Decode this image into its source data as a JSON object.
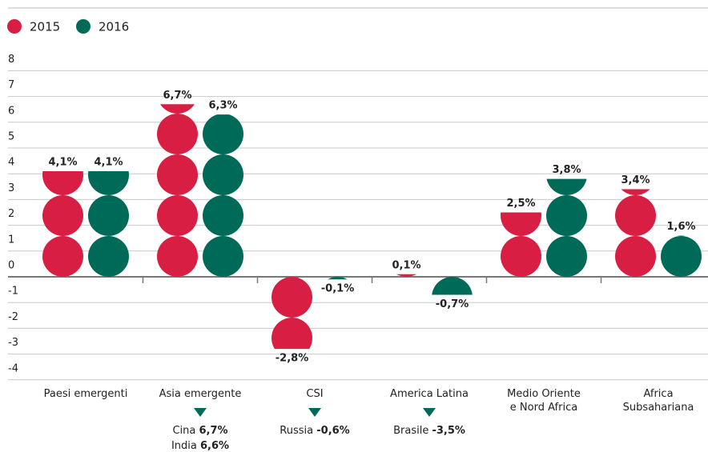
{
  "chart_data": {
    "type": "pictogram-bar",
    "categories": [
      "Paesi emergenti",
      "Asia emergente",
      "CSI",
      "America Latina",
      "Medio Oriente\ne Nord Africa",
      "Africa\nSubsahariana"
    ],
    "series": [
      {
        "name": "2015",
        "color": "#d81e43",
        "values": [
          4.1,
          6.7,
          -2.8,
          0.1,
          2.5,
          3.4
        ],
        "value_labels": [
          "4,1%",
          "6,7%",
          "-2,8%",
          "0,1%",
          "2,5%",
          "3,4%"
        ]
      },
      {
        "name": "2016",
        "color": "#006a58",
        "values": [
          4.1,
          6.3,
          -0.1,
          -0.7,
          3.8,
          1.6
        ],
        "value_labels": [
          "4,1%",
          "6,3%",
          "-0,1%",
          "-0,7%",
          "3,8%",
          "1,6%"
        ]
      }
    ],
    "ylim": [
      -4.5,
      8.5
    ],
    "yticks": [
      8,
      7,
      6,
      5,
      4,
      3,
      2,
      1,
      0,
      -1,
      -2,
      -3,
      -4
    ],
    "grid": true,
    "annotations": [
      [
        [
          "Cina ",
          "6,7%"
        ],
        [
          "India ",
          "6,6%"
        ]
      ],
      [
        [
          "Russia ",
          "-0,6%"
        ]
      ],
      [
        [
          "Brasile ",
          "-3,5%"
        ]
      ]
    ]
  }
}
